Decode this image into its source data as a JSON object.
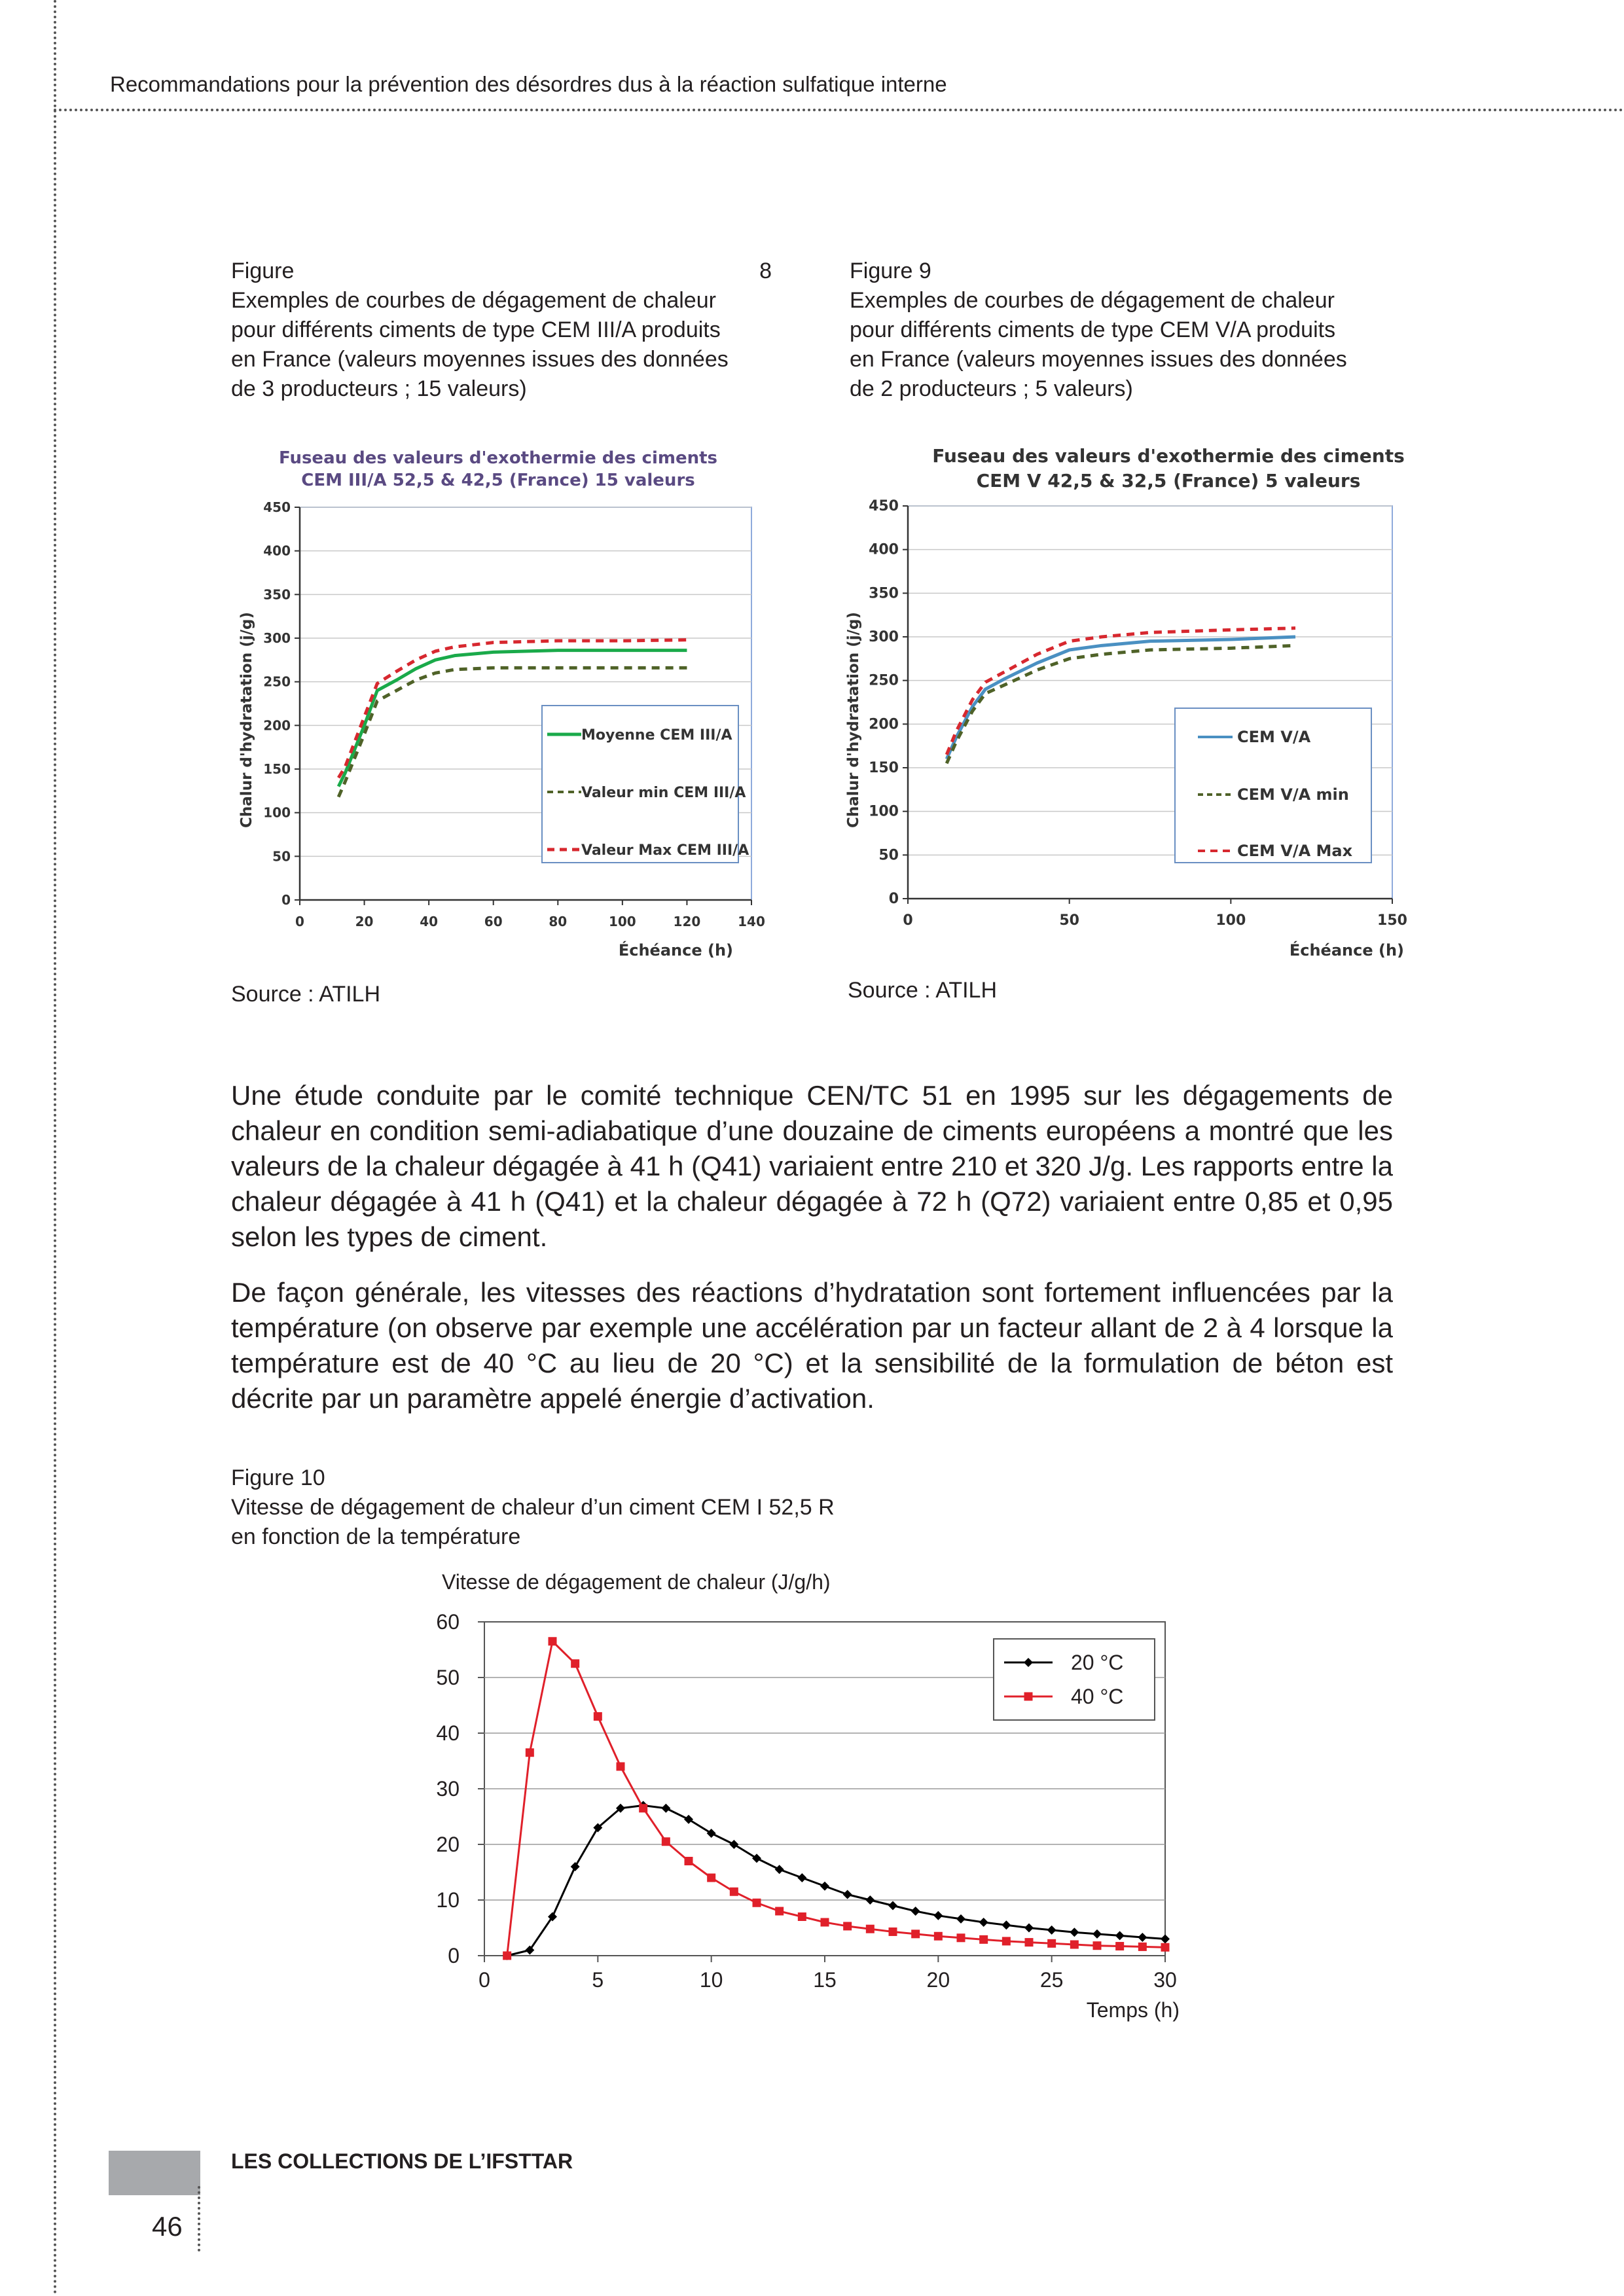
{
  "header": {
    "title": "Recommandations pour la prévention des désordres dus à la réaction sulfatique interne"
  },
  "figure8": {
    "caption_label": "Figure",
    "caption_number": "8",
    "caption_lines": [
      "Exemples de courbes de dégagement de chaleur",
      "pour différents ciments de type CEM III/A produits",
      "en France (valeurs moyennes issues des données",
      "de 3 producteurs ; 15 valeurs)"
    ],
    "source": "Source : ATILH",
    "chart": {
      "title_lines": [
        "Fuseau des valeurs d'exothermie des ciments",
        "CEM III/A  52,5 & 42,5 (France)  15 valeurs"
      ],
      "ylabel": "Chalur d'hydratation (j/g)",
      "xlabel": "Échéance (h)",
      "xticks": [
        "0",
        "20",
        "40",
        "60",
        "80",
        "100",
        "120",
        "140"
      ],
      "yticks": [
        "0",
        "50",
        "100",
        "150",
        "200",
        "250",
        "300",
        "350",
        "400",
        "450"
      ],
      "legend": [
        "Moyenne CEM III/A",
        "Valeur min CEM III/A",
        "Valeur Max CEM III/A"
      ]
    }
  },
  "figure9": {
    "caption_label": "Figure 9",
    "caption_lines": [
      "Exemples de courbes de dégagement de chaleur",
      "pour différents ciments de type CEM V/A produits",
      "en France (valeurs moyennes issues des données",
      "de 2 producteurs ; 5 valeurs)"
    ],
    "source": "Source : ATILH",
    "chart": {
      "title_lines": [
        "Fuseau des valeurs d'exothermie des ciments",
        "CEM V  42,5 & 32,5 (France)  5 valeurs"
      ],
      "ylabel": "Chalur d'hydratation (j/g)",
      "xlabel": "Échéance (h)",
      "xticks": [
        "0",
        "50",
        "100",
        "150"
      ],
      "yticks": [
        "0",
        "50",
        "100",
        "150",
        "200",
        "250",
        "300",
        "350",
        "400",
        "450"
      ],
      "legend": [
        "CEM V/A",
        "CEM V/A min",
        "CEM V/A Max"
      ]
    }
  },
  "paragraphs": [
    "Une étude conduite par le comité technique CEN/TC 51 en 1995 sur les dégagements de chaleur en condition semi-adiabatique d’une douzaine de ciments européens a montré que les valeurs de la chaleur dégagée à 41 h (Q41) variaient entre 210 et 320 J/g. Les rapports entre la chaleur dégagée à 41 h (Q41) et la chaleur dégagée à 72 h (Q72) variaient entre 0,85 et 0,95 selon les types de ciment.",
    "De façon générale, les vitesses des réactions d’hydratation sont fortement influencées par la température (on observe par exemple une accélération par un facteur allant de 2 à 4 lorsque la température est de 40 °C au lieu de 20 °C) et la sensibilité de la formulation de béton est décrite par un paramètre appelé énergie d’activation."
  ],
  "figure10": {
    "caption_lines": [
      "Figure 10",
      "Vitesse de dégagement de chaleur d’un ciment CEM I 52,5 R",
      "en fonction de la température"
    ]
  },
  "footer": {
    "collection": "LES COLLECTIONS DE L’IFSTTAR",
    "page_number": "46"
  },
  "chart_data": [
    {
      "type": "line",
      "title": "Fuseau des valeurs d'exothermie des ciments CEM III/A  52,5 & 42,5 (France)  15 valeurs",
      "xlabel": "Échéance (h)",
      "ylabel": "Chalur d'hydratation (j/g)",
      "xlim": [
        0,
        140
      ],
      "ylim": [
        0,
        450
      ],
      "grid": true,
      "legend_position": "bottom-right",
      "series": [
        {
          "name": "Moyenne CEM III/A",
          "color": "#1aaa4a",
          "dash": "solid",
          "x": [
            12,
            14,
            20,
            24,
            30,
            36,
            42,
            48,
            60,
            80,
            100,
            120
          ],
          "y": [
            130,
            145,
            200,
            240,
            252,
            265,
            275,
            280,
            284,
            286,
            286,
            286
          ]
        },
        {
          "name": "Valeur min CEM III/A",
          "color": "#4f6228",
          "dash": "dashed",
          "x": [
            12,
            14,
            20,
            24,
            30,
            36,
            42,
            48,
            60,
            80,
            100,
            120
          ],
          "y": [
            118,
            135,
            190,
            228,
            240,
            252,
            260,
            264,
            266,
            266,
            266,
            266
          ]
        },
        {
          "name": "Valeur Max CEM III/A",
          "color": "#d7282f",
          "dash": "dashed",
          "x": [
            12,
            14,
            20,
            24,
            30,
            36,
            42,
            48,
            60,
            80,
            100,
            120
          ],
          "y": [
            140,
            152,
            210,
            248,
            262,
            275,
            285,
            290,
            295,
            297,
            297,
            298
          ]
        }
      ]
    },
    {
      "type": "line",
      "title": "Fuseau des valeurs d'exothermie des ciments CEM V  42,5 & 32,5 (France)  5 valeurs",
      "xlabel": "Échéance (h)",
      "ylabel": "Chalur d'hydratation (j/g)",
      "xlim": [
        0,
        150
      ],
      "ylim": [
        0,
        450
      ],
      "grid": true,
      "legend_position": "bottom-right",
      "series": [
        {
          "name": "CEM V/A",
          "color": "#4a90c2",
          "dash": "solid",
          "x": [
            12,
            15,
            20,
            24,
            30,
            40,
            50,
            60,
            75,
            100,
            120
          ],
          "y": [
            160,
            185,
            220,
            240,
            252,
            270,
            285,
            290,
            295,
            297,
            300
          ]
        },
        {
          "name": "CEM V/A min",
          "color": "#4f6228",
          "dash": "dashed",
          "x": [
            12,
            15,
            20,
            24,
            30,
            40,
            50,
            60,
            75,
            100,
            120
          ],
          "y": [
            155,
            180,
            215,
            235,
            245,
            262,
            275,
            280,
            285,
            287,
            290
          ]
        },
        {
          "name": "CEM V/A Max",
          "color": "#d7282f",
          "dash": "dashed",
          "x": [
            12,
            15,
            20,
            24,
            30,
            40,
            50,
            60,
            75,
            100,
            120
          ],
          "y": [
            165,
            192,
            228,
            248,
            260,
            280,
            295,
            300,
            305,
            308,
            310
          ]
        }
      ]
    },
    {
      "type": "line",
      "ylabel": "Vitesse de dégagement de chaleur (J/g/h)",
      "xlabel": "Temps (h)",
      "xlim": [
        0,
        30
      ],
      "ylim": [
        0,
        60
      ],
      "xticks": [
        "0",
        "5",
        "10",
        "15",
        "20",
        "25",
        "30"
      ],
      "yticks": [
        "0",
        "10",
        "20",
        "30",
        "40",
        "50",
        "60"
      ],
      "grid": true,
      "legend_position": "top-right",
      "series": [
        {
          "name": "20 °C",
          "color": "#000000",
          "marker": "diamond",
          "x": [
            1,
            2,
            3,
            4,
            5,
            6,
            7,
            8,
            9,
            10,
            11,
            12,
            13,
            14,
            15,
            16,
            17,
            18,
            19,
            20,
            21,
            22,
            23,
            24,
            25,
            26,
            27,
            28,
            29,
            30
          ],
          "y": [
            0,
            1,
            7,
            16,
            23,
            26.5,
            27,
            26.5,
            24.5,
            22,
            20,
            17.5,
            15.5,
            14,
            12.5,
            11,
            10,
            9,
            8,
            7.2,
            6.6,
            6,
            5.5,
            5,
            4.6,
            4.2,
            3.9,
            3.6,
            3.3,
            3
          ]
        },
        {
          "name": "40 °C",
          "color": "#e0202a",
          "marker": "square",
          "x": [
            1,
            2,
            3,
            4,
            5,
            6,
            7,
            8,
            9,
            10,
            11,
            12,
            13,
            14,
            15,
            16,
            17,
            18,
            19,
            20,
            21,
            22,
            23,
            24,
            25,
            26,
            27,
            28,
            29,
            30
          ],
          "y": [
            0,
            36.5,
            56.5,
            52.5,
            43,
            34,
            26.5,
            20.5,
            17,
            14,
            11.5,
            9.5,
            8,
            7,
            6,
            5.3,
            4.8,
            4.3,
            3.9,
            3.5,
            3.2,
            2.9,
            2.6,
            2.4,
            2.2,
            2,
            1.8,
            1.7,
            1.6,
            1.5
          ]
        }
      ]
    }
  ]
}
